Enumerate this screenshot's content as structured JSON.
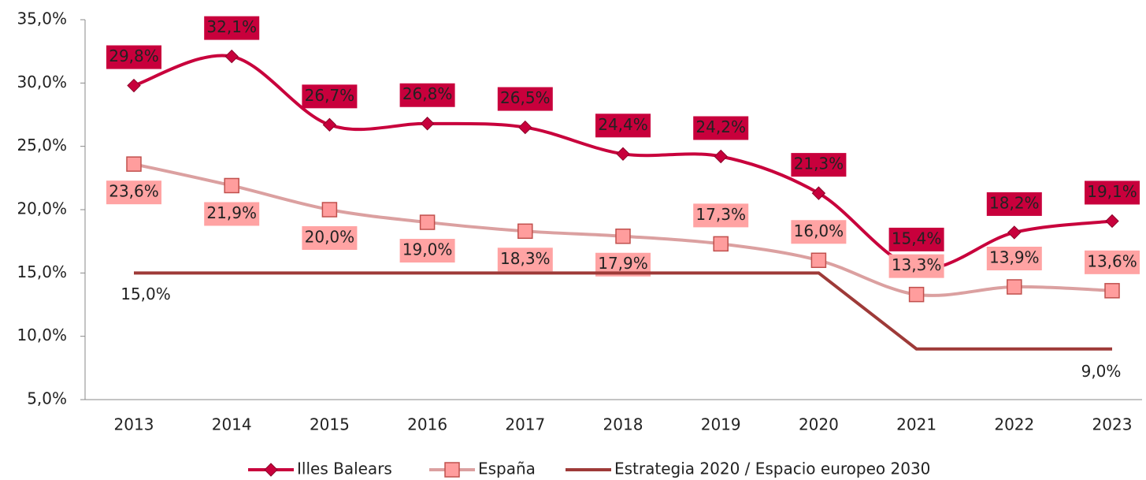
{
  "chart_data": {
    "type": "line",
    "categories": [
      "2013",
      "2014",
      "2015",
      "2016",
      "2017",
      "2018",
      "2019",
      "2020",
      "2021",
      "2022",
      "2023"
    ],
    "series": [
      {
        "name": "Illes Balears",
        "color": "#c8003c",
        "marker": "diamond",
        "values": [
          29.8,
          32.1,
          26.7,
          26.8,
          26.5,
          24.4,
          24.2,
          21.3,
          15.4,
          18.2,
          19.1
        ],
        "value_labels": [
          "29,8%",
          "32,1%",
          "26,7%",
          "26,8%",
          "26,5%",
          "24,4%",
          "24,2%",
          "21,3%",
          "15,4%",
          "18,2%",
          "19,1%"
        ]
      },
      {
        "name": "España",
        "color": "#dba0a0",
        "marker": "square",
        "values": [
          23.6,
          21.9,
          20.0,
          19.0,
          18.3,
          17.9,
          17.3,
          16.0,
          13.3,
          13.9,
          13.6
        ],
        "value_labels": [
          "23,6%",
          "21,9%",
          "20,0%",
          "19,0%",
          "18,3%",
          "17,9%",
          "17,3%",
          "16,0%",
          "13,3%",
          "13,9%",
          "13,6%"
        ]
      },
      {
        "name": "Estrategia 2020 / Espacio europeo 2030",
        "color": "#9e3a38",
        "marker": "none",
        "values": [
          15,
          15,
          15,
          15,
          15,
          15,
          15,
          15,
          9,
          9,
          9
        ],
        "value_labels": [
          "15,0%",
          null,
          null,
          null,
          null,
          null,
          null,
          null,
          null,
          null,
          "9,0%"
        ]
      }
    ],
    "ylim": [
      5,
      35
    ],
    "yticks": [
      {
        "value": 5,
        "label": "5,0%"
      },
      {
        "value": 10,
        "label": "10,0%"
      },
      {
        "value": 15,
        "label": "15,0%"
      },
      {
        "value": 20,
        "label": "20,0%"
      },
      {
        "value": 25,
        "label": "25,0%"
      },
      {
        "value": 30,
        "label": "30,0%"
      },
      {
        "value": 35,
        "label": "35,0%"
      }
    ],
    "legend": "bottom"
  }
}
